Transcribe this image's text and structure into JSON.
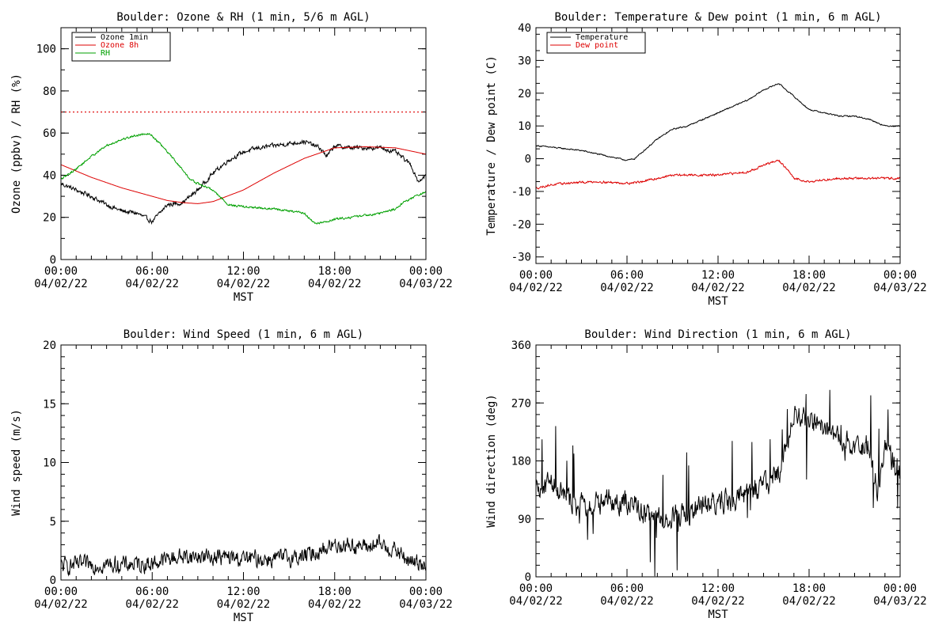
{
  "chart_data": [
    {
      "type": "line",
      "title": "Boulder: Ozone & RH (1 min, 5/6 m AGL)",
      "xlabel": "MST",
      "ylabel": "Ozone (ppbv) / RH (%)",
      "xlim": [
        0,
        24
      ],
      "ylim": [
        0,
        110
      ],
      "x_ticks": [
        {
          "v": 0,
          "l1": "00:00",
          "l2": "04/02/22"
        },
        {
          "v": 6,
          "l1": "06:00",
          "l2": "04/02/22"
        },
        {
          "v": 12,
          "l1": "12:00",
          "l2": "04/02/22"
        },
        {
          "v": 18,
          "l1": "18:00",
          "l2": "04/02/22"
        },
        {
          "v": 24,
          "l1": "00:00",
          "l2": "04/03/22"
        }
      ],
      "y_ticks": [
        0,
        20,
        40,
        60,
        80,
        100
      ],
      "y_minor": 10,
      "legend_position": "top-left",
      "reference_lines": [
        {
          "y": 70,
          "color": "#dd0000",
          "style": "dotted"
        }
      ],
      "series": [
        {
          "name": "Ozone 1min",
          "color": "#000000",
          "noise": 1.6,
          "x": [
            0,
            1,
            2,
            3,
            4,
            5,
            5.5,
            6,
            6.5,
            7,
            8,
            9,
            10,
            11,
            12,
            13,
            14,
            15,
            16,
            16.7,
            17,
            17.5,
            18,
            19,
            20,
            21,
            22,
            22.5,
            23,
            23.5,
            24
          ],
          "y": [
            36,
            33,
            30,
            26,
            23,
            22,
            20,
            18,
            22,
            26,
            27,
            33,
            41,
            47,
            51,
            53,
            54,
            55,
            56,
            54,
            53,
            49,
            54,
            53,
            53,
            53,
            51,
            48,
            45,
            37,
            40
          ]
        },
        {
          "name": "Ozone 8h",
          "color": "#dd0000",
          "noise": 0,
          "x": [
            0,
            2,
            4,
            6,
            7,
            8,
            9,
            10,
            12,
            14,
            16,
            18,
            20,
            22,
            24
          ],
          "y": [
            45,
            39,
            34,
            30,
            28,
            27,
            26.5,
            27.5,
            33,
            41,
            48,
            53,
            53.5,
            53,
            50
          ]
        },
        {
          "name": "RH",
          "color": "#00a000",
          "noise": 0.8,
          "x": [
            0,
            1,
            2,
            3,
            4,
            5,
            5.8,
            6.5,
            7.5,
            8.5,
            9,
            10,
            11,
            12,
            14,
            16,
            16.7,
            17.5,
            18,
            20,
            21,
            22,
            22.5,
            23,
            24
          ],
          "y": [
            38,
            43,
            49,
            54,
            57,
            59,
            60,
            55,
            47,
            38,
            36,
            33,
            26,
            25,
            24,
            22,
            17,
            18,
            19,
            21,
            22,
            24,
            27,
            29,
            32
          ]
        }
      ]
    },
    {
      "type": "line",
      "title": "Boulder: Temperature & Dew point (1 min, 6 m AGL)",
      "xlabel": "MST",
      "ylabel": "Temperature / Dew point (C)",
      "xlim": [
        0,
        24
      ],
      "ylim": [
        -32,
        40
      ],
      "x_ticks": [
        {
          "v": 0,
          "l1": "00:00",
          "l2": "04/02/22"
        },
        {
          "v": 6,
          "l1": "06:00",
          "l2": "04/02/22"
        },
        {
          "v": 12,
          "l1": "12:00",
          "l2": "04/02/22"
        },
        {
          "v": 18,
          "l1": "18:00",
          "l2": "04/02/22"
        },
        {
          "v": 24,
          "l1": "00:00",
          "l2": "04/03/22"
        }
      ],
      "y_ticks": [
        -30,
        -20,
        -10,
        0,
        10,
        20,
        30,
        40
      ],
      "y_minor": 5,
      "legend_position": "top-left",
      "series": [
        {
          "name": "Temperature",
          "color": "#000000",
          "noise": 0.3,
          "x": [
            0,
            1,
            2,
            3,
            4,
            5,
            6,
            6.5,
            7,
            8,
            9,
            10,
            11,
            12,
            13,
            14,
            15,
            16,
            17,
            18,
            19,
            20,
            21,
            22,
            23,
            24
          ],
          "y": [
            4,
            3.5,
            3,
            2.5,
            1.5,
            0.5,
            -0.5,
            0,
            2,
            6,
            9,
            10,
            12,
            14,
            16,
            18,
            21,
            23,
            19,
            15,
            14,
            13,
            13,
            12,
            10,
            10
          ]
        },
        {
          "name": "Dew point",
          "color": "#dd0000",
          "noise": 0.5,
          "x": [
            0,
            1,
            2,
            4,
            6,
            7,
            8,
            9,
            10,
            12,
            14,
            15,
            16,
            16.5,
            17,
            18,
            19,
            20,
            22,
            24
          ],
          "y": [
            -9,
            -8,
            -7.5,
            -7,
            -7.5,
            -7,
            -6,
            -5,
            -5,
            -5,
            -4,
            -2,
            -0.5,
            -3,
            -6,
            -7,
            -6.5,
            -6,
            -6,
            -6
          ]
        }
      ]
    },
    {
      "type": "line",
      "title": "Boulder: Wind Speed (1 min, 6 m AGL)",
      "xlabel": "MST",
      "ylabel": "Wind speed (m/s)",
      "xlim": [
        0,
        24
      ],
      "ylim": [
        0,
        20
      ],
      "x_ticks": [
        {
          "v": 0,
          "l1": "00:00",
          "l2": "04/02/22"
        },
        {
          "v": 6,
          "l1": "06:00",
          "l2": "04/02/22"
        },
        {
          "v": 12,
          "l1": "12:00",
          "l2": "04/02/22"
        },
        {
          "v": 18,
          "l1": "18:00",
          "l2": "04/02/22"
        },
        {
          "v": 24,
          "l1": "00:00",
          "l2": "04/03/22"
        }
      ],
      "y_ticks": [
        0,
        5,
        10,
        15,
        20
      ],
      "y_minor": 1,
      "series": [
        {
          "name": "",
          "color": "#000000",
          "noise": 1.1,
          "floor": 0,
          "x": [
            0,
            2,
            4,
            6,
            7,
            8,
            10,
            12,
            14,
            16,
            17,
            18,
            19,
            20,
            21,
            22,
            23,
            24
          ],
          "y": [
            1.2,
            1.3,
            1.3,
            1.4,
            1.8,
            2,
            2,
            1.8,
            1.8,
            2,
            2.5,
            3,
            3,
            2.8,
            3,
            2.5,
            1.5,
            1.5
          ]
        }
      ]
    },
    {
      "type": "line",
      "title": "Boulder: Wind Direction (1 min, 6 m AGL)",
      "xlabel": "MST",
      "ylabel": "Wind direction (deg)",
      "xlim": [
        0,
        24
      ],
      "ylim": [
        0,
        360
      ],
      "x_ticks": [
        {
          "v": 0,
          "l1": "00:00",
          "l2": "04/02/22"
        },
        {
          "v": 6,
          "l1": "06:00",
          "l2": "04/02/22"
        },
        {
          "v": 12,
          "l1": "12:00",
          "l2": "04/02/22"
        },
        {
          "v": 18,
          "l1": "18:00",
          "l2": "04/02/22"
        },
        {
          "v": 24,
          "l1": "00:00",
          "l2": "04/03/22"
        }
      ],
      "y_ticks": [
        0,
        90,
        180,
        270,
        360
      ],
      "y_minor": 18,
      "series": [
        {
          "name": "",
          "color": "#000000",
          "noise": 28,
          "spiky": true,
          "floor": 0,
          "ceil": 360,
          "x": [
            0,
            1,
            2,
            3,
            4,
            5,
            6,
            6.8,
            7,
            8,
            9,
            10,
            11,
            12,
            13,
            14,
            15,
            16,
            16.5,
            17,
            18,
            19,
            20,
            21,
            22,
            22.5,
            23,
            24
          ],
          "y": [
            130,
            150,
            120,
            110,
            115,
            120,
            115,
            110,
            95,
            90,
            95,
            95,
            110,
            115,
            120,
            130,
            140,
            160,
            200,
            250,
            240,
            230,
            215,
            205,
            200,
            130,
            200,
            160
          ]
        }
      ]
    }
  ]
}
